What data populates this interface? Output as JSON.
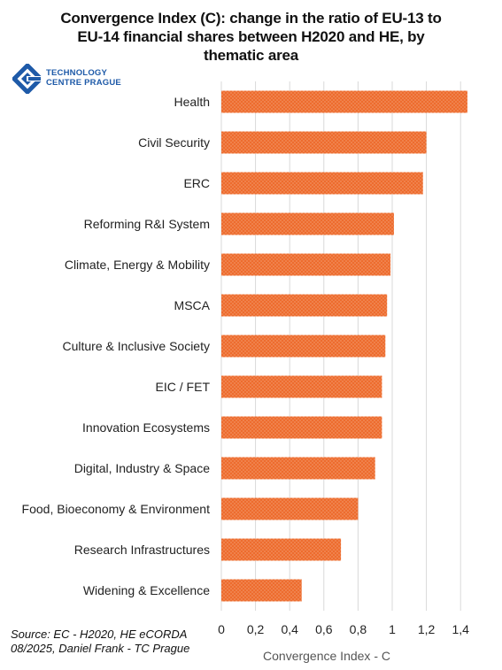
{
  "chart_data": {
    "type": "bar",
    "orientation": "horizontal",
    "title_lines": [
      "Convergence Index (C): change in the ratio of EU-13 to",
      "EU-14 financial shares between H2020 and HE, by",
      "thematic area"
    ],
    "categories": [
      "Health",
      "Civil Security",
      "ERC",
      "Reforming R&I System",
      "Climate, Energy & Mobility",
      "MSCA",
      "Culture & Inclusive Society",
      "EIC / FET",
      "Innovation Ecosystems",
      "Digital, Industry & Space",
      "Food, Bioeconomy & Environment",
      "Research Infrastructures",
      "Widening & Excellence"
    ],
    "values": [
      1.44,
      1.2,
      1.18,
      1.01,
      0.99,
      0.97,
      0.96,
      0.94,
      0.94,
      0.9,
      0.8,
      0.7,
      0.47
    ],
    "xlabel": "Convergence Index - C",
    "xlim": [
      0,
      1.5
    ],
    "xticks": [
      "0",
      "0,2",
      "0,4",
      "0,6",
      "0,8",
      "1",
      "1,2",
      "1,4"
    ],
    "grid": "vertical",
    "bar_color": "#ed6c2e",
    "bar_pattern": "dotted"
  },
  "logo": {
    "line1": "TECHNOLOGY",
    "line2": "CENTRE PRAGUE",
    "color": "#1e5aa8"
  },
  "source": {
    "line1": "Source: EC -  H2020, HE eCORDA",
    "line2": "08/2025, Daniel Frank - TC Prague"
  }
}
